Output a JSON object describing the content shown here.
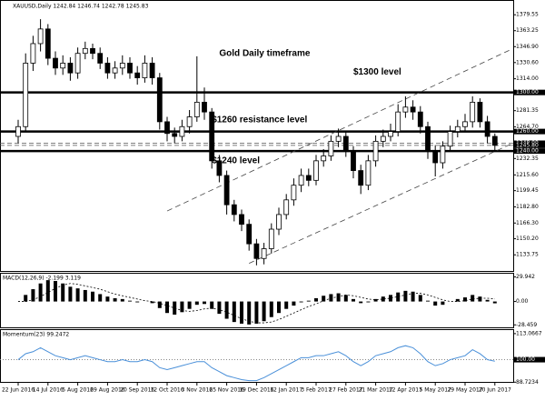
{
  "chart_data": [
    {
      "type": "candlestick",
      "title": "XAUUSD,Daily  1242.84 1246.74 1242.78 1245.83",
      "categories": [
        "22 Jun 2016",
        null,
        null,
        null,
        "14 Jul 2016",
        null,
        null,
        null,
        "5 Aug 2016",
        null,
        null,
        null,
        "29 Aug 2016",
        null,
        null,
        null,
        "20 Sep 2016",
        null,
        null,
        null,
        "12 Oct 2016",
        null,
        null,
        null,
        "3 Nov 2016",
        null,
        null,
        null,
        "25 Nov 2016",
        null,
        null,
        null,
        "19 Dec 2016",
        null,
        null,
        null,
        "12 Jan 2017",
        null,
        null,
        null,
        "3 Feb 2017",
        null,
        null,
        null,
        "27 Feb 2017",
        null,
        null,
        null,
        "21 Mar 2017",
        null,
        null,
        null,
        "12 Apr 2017",
        null,
        null,
        null,
        "5 May 2017",
        null,
        null,
        null,
        "29 May 2017",
        null,
        null,
        null,
        "20 Jun 2017"
      ],
      "open": [
        1255,
        1265,
        1330,
        1350,
        1365,
        1335,
        1325,
        1330,
        1320,
        1340,
        1345,
        1340,
        1330,
        1320,
        1325,
        1330,
        1320,
        1315,
        1330,
        1315,
        1270,
        1258,
        1255,
        1265,
        1275,
        1290,
        1280,
        1230,
        1215,
        1185,
        1175,
        1165,
        1145,
        1130,
        1140,
        1160,
        1175,
        1190,
        1205,
        1215,
        1210,
        1230,
        1235,
        1250,
        1255,
        1240,
        1220,
        1205,
        1230,
        1250,
        1255,
        1260,
        1280,
        1285,
        1280,
        1265,
        1240,
        1228,
        1245,
        1260,
        1265,
        1270,
        1290,
        1270,
        1255
      ],
      "high": [
        1272,
        1340,
        1358,
        1375,
        1370,
        1342,
        1338,
        1336,
        1346,
        1352,
        1350,
        1346,
        1336,
        1332,
        1338,
        1336,
        1327,
        1338,
        1336,
        1320,
        1275,
        1264,
        1272,
        1282,
        1337,
        1305,
        1284,
        1236,
        1220,
        1190,
        1180,
        1170,
        1150,
        1146,
        1166,
        1182,
        1196,
        1212,
        1222,
        1222,
        1236,
        1242,
        1256,
        1263,
        1260,
        1245,
        1226,
        1236,
        1256,
        1262,
        1268,
        1288,
        1296,
        1292,
        1286,
        1270,
        1246,
        1250,
        1266,
        1272,
        1278,
        1296,
        1294,
        1276,
        1258
      ],
      "low": [
        1248,
        1260,
        1322,
        1342,
        1328,
        1318,
        1318,
        1312,
        1314,
        1334,
        1334,
        1324,
        1314,
        1314,
        1318,
        1314,
        1308,
        1310,
        1308,
        1262,
        1250,
        1248,
        1250,
        1258,
        1270,
        1272,
        1222,
        1208,
        1175,
        1168,
        1158,
        1138,
        1123,
        1124,
        1135,
        1154,
        1170,
        1184,
        1198,
        1204,
        1205,
        1224,
        1230,
        1244,
        1234,
        1212,
        1196,
        1200,
        1224,
        1244,
        1250,
        1255,
        1274,
        1272,
        1258,
        1232,
        1214,
        1222,
        1240,
        1254,
        1260,
        1264,
        1264,
        1248,
        1241
      ],
      "close": [
        1265,
        1330,
        1350,
        1365,
        1335,
        1325,
        1330,
        1320,
        1340,
        1345,
        1340,
        1330,
        1320,
        1325,
        1330,
        1320,
        1315,
        1330,
        1315,
        1270,
        1258,
        1255,
        1265,
        1275,
        1290,
        1280,
        1230,
        1215,
        1185,
        1175,
        1165,
        1145,
        1130,
        1140,
        1160,
        1175,
        1190,
        1205,
        1215,
        1210,
        1230,
        1235,
        1250,
        1255,
        1240,
        1220,
        1205,
        1230,
        1250,
        1255,
        1260,
        1280,
        1285,
        1280,
        1265,
        1240,
        1228,
        1245,
        1260,
        1265,
        1270,
        1290,
        1270,
        1255,
        1245.83
      ],
      "ylim": [
        1120,
        1390
      ],
      "yticks": [
        1379.55,
        1363.25,
        {
          "value": 1346.9,
          "label": "1346.90"
        },
        {
          "value": 1330.6,
          "label": "1330.60"
        },
        {
          "value": 1314,
          "label": "1314.00"
        },
        1281.35,
        {
          "value": 1264.7,
          "label": "1264.70"
        },
        1232.35,
        {
          "value": 1215.6,
          "label": "1215.60"
        },
        1199.45,
        {
          "value": 1182.8,
          "label": "1182.80"
        },
        {
          "value": 1166.3,
          "label": "1166.30"
        },
        {
          "value": 1150.2,
          "label": "1150.20"
        },
        1133.75
      ],
      "levels": [
        {
          "value": 1300,
          "label": "1300.00",
          "style": "solid"
        },
        {
          "value": 1260,
          "label": "1260.00",
          "style": "solid"
        },
        {
          "value": 1248,
          "label": "1248.00",
          "style": "dashed"
        },
        {
          "value": 1245.8,
          "label": "1245.80",
          "style": "dashed"
        },
        {
          "value": 1240,
          "label": "1240.00",
          "style": "solid"
        }
      ],
      "trendlines": [
        {
          "x": [
            20,
            66
          ],
          "y": [
            1178.6,
            1343.4
          ]
        },
        {
          "x": [
            31,
            67
          ],
          "y": [
            1125,
            1250
          ]
        }
      ],
      "annotations": [
        {
          "text": "Gold Daily timeframe",
          "x": 27,
          "y": 1340
        },
        {
          "text": "$1300 level",
          "x": 45,
          "y": 1321
        },
        {
          "text": "$1260 resistance level",
          "x": 26,
          "y": 1272
        },
        {
          "text": "$1240 level",
          "x": 26,
          "y": 1230
        }
      ]
    },
    {
      "type": "macd",
      "title": "MACD(12,26,9) -2.199 3.119",
      "values": [
        0,
        8,
        15,
        22,
        26,
        25,
        22,
        18,
        16,
        14,
        12,
        9,
        6,
        4,
        3,
        1,
        -1,
        0,
        -2,
        -8,
        -14,
        -16,
        -13,
        -9,
        -4,
        -3,
        -9,
        -15,
        -21,
        -25,
        -27,
        -28,
        -27,
        -24,
        -19,
        -14,
        -9,
        -5,
        -1,
        1,
        4,
        7,
        9,
        10,
        8,
        3,
        -2,
        -1,
        3,
        6,
        8,
        11,
        13,
        12,
        8,
        1,
        -5,
        -4,
        0,
        3,
        5,
        8,
        6,
        2,
        -2.199
      ],
      "signal": [
        0,
        0,
        2,
        6,
        11,
        16,
        20,
        22,
        21,
        19,
        17,
        15,
        12,
        9,
        7,
        5,
        3,
        1,
        0,
        -2,
        -5,
        -8,
        -11,
        -12,
        -11,
        -9,
        -8,
        -10,
        -13,
        -17,
        -21,
        -24,
        -26,
        -26,
        -25,
        -22,
        -18,
        -14,
        -10,
        -6,
        -3,
        1,
        4,
        6,
        8,
        7,
        5,
        3,
        2,
        3,
        4,
        6,
        8,
        10,
        10,
        8,
        5,
        2,
        0,
        0,
        1,
        3,
        4,
        4,
        3.119
      ],
      "ylim": [
        -31.5,
        35
      ],
      "yticks": [
        29.942,
        {
          "value": 0,
          "label": "0.00"
        },
        -28.459
      ]
    },
    {
      "type": "momentum",
      "title": "Momentum(23) 99.2472",
      "color": "#4a90d9",
      "values": [
        100,
        103,
        104,
        106,
        104,
        102,
        101,
        100,
        101,
        102,
        101,
        100,
        99,
        99,
        100,
        99,
        99,
        100,
        99,
        96,
        95,
        96,
        97,
        98,
        99,
        99,
        96,
        94,
        92,
        91,
        90,
        89.5,
        89.5,
        91,
        93,
        95,
        97,
        99,
        101,
        101,
        102,
        102,
        103,
        104,
        102,
        99,
        97,
        99,
        102,
        103,
        104,
        106,
        107,
        106,
        103,
        99,
        97,
        98,
        100,
        101,
        102,
        105,
        103,
        100,
        99.2472
      ],
      "ylim": [
        88.4,
        115.3
      ],
      "yticks": [
        113.0667,
        88.7234
      ],
      "levels": [
        {
          "value": 100,
          "label": "100.00",
          "style": "dotted"
        }
      ]
    }
  ]
}
